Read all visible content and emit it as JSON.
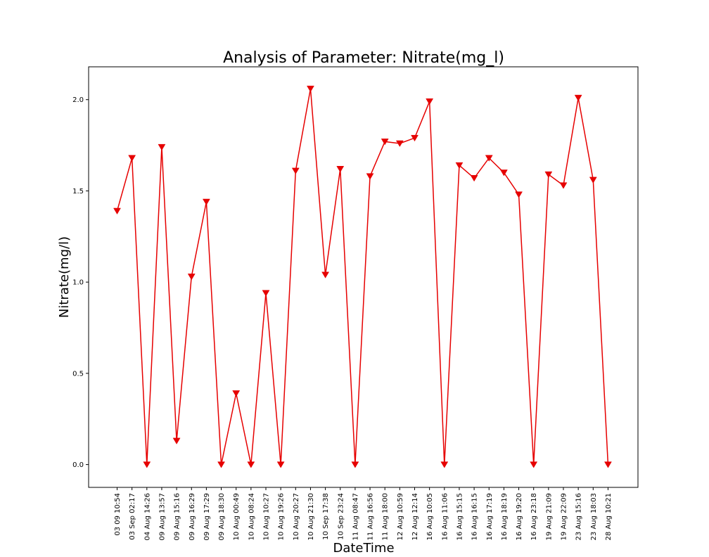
{
  "chart_data": {
    "type": "line",
    "title": "Analysis of Parameter: Nitrate(mg_l)",
    "xlabel": "DateTime",
    "ylabel": "Nitrate(mg/l)",
    "ylim": [
      -0.125,
      2.18
    ],
    "yticks": [
      0.0,
      0.5,
      1.0,
      1.5,
      2.0
    ],
    "ytick_labels": [
      "0.0",
      "0.5",
      "1.0",
      "1.5",
      "2.0"
    ],
    "grid": false,
    "legend": "none",
    "marker": "triangle-down",
    "line_color": "#e60000",
    "categories": [
      "03 09 10:54",
      "03 Sep 02:17",
      "04 Aug 14:26",
      "09 Aug 13:57",
      "09 Aug 15:16",
      "09 Aug 16:29",
      "09 Aug 17:29",
      "09 Aug 18:30",
      "10 Aug 00:49",
      "10 Aug 08:24",
      "10 Aug 10:27",
      "10 Aug 19:26",
      "10 Aug 20:27",
      "10 Aug 21:30",
      "10 Sep 17:38",
      "10 Sep 23:24",
      "11 Aug 08:47",
      "11 Aug 16:56",
      "11 Aug 18:00",
      "12 Aug 10:59",
      "12 Aug 12:14",
      "16 Aug 10:05",
      "16 Aug 11:06",
      "16 Aug 15:15",
      "16 Aug 16:15",
      "16 Aug 17:19",
      "16 Aug 18:19",
      "16 Aug 19:20",
      "16 Aug 23:18",
      "19 Aug 21:09",
      "19 Aug 22:09",
      "23 Aug 15:16",
      "23 Aug 18:03",
      "28 Aug 10:21"
    ],
    "values": [
      1.39,
      1.68,
      0.0,
      1.74,
      0.13,
      1.03,
      1.44,
      0.0,
      0.39,
      0.0,
      0.94,
      0.0,
      1.61,
      2.06,
      1.04,
      1.62,
      0.0,
      1.58,
      1.77,
      1.76,
      1.79,
      1.99,
      0.0,
      1.64,
      1.57,
      1.68,
      1.6,
      1.48,
      0.0,
      1.59,
      1.53,
      2.01,
      1.56,
      0.0
    ]
  }
}
